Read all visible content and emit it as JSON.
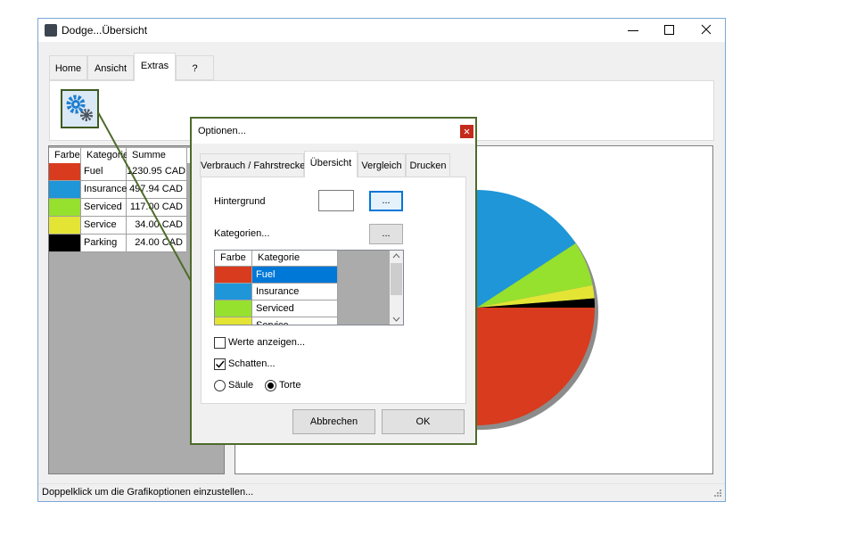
{
  "window": {
    "title": "Dodge...Übersicht",
    "tabs": [
      "Home",
      "Ansicht",
      "Extras",
      "?"
    ],
    "active_tab": 2,
    "status": "Doppelklick um die Grafikoptionen einzustellen..."
  },
  "summary_table": {
    "headers": [
      "Farbe",
      "Kategorie",
      "Summe"
    ],
    "rows": [
      {
        "category": "Fuel",
        "color": "#d83b1e",
        "sum": 1230.95,
        "sum_label": "1230.95 CAD"
      },
      {
        "category": "Insurance",
        "color": "#1e96d8",
        "sum": 497.94,
        "sum_label": "497.94 CAD"
      },
      {
        "category": "Serviced",
        "color": "#96e02e",
        "sum": 117.0,
        "sum_label": "117.00 CAD"
      },
      {
        "category": "Service",
        "color": "#e4e434",
        "sum": 34.0,
        "sum_label": "34.00 CAD"
      },
      {
        "category": "Parking",
        "color": "#000000",
        "sum": 24.0,
        "sum_label": "24.00 CAD"
      }
    ]
  },
  "dialog": {
    "title": "Optionen...",
    "tabs": [
      "Verbrauch / Fahrstrecke",
      "Übersicht",
      "Vergleich",
      "Drucken"
    ],
    "active_tab": 1,
    "background_label": "Hintergrund",
    "background_button": "...",
    "categories_label": "Kategorien...",
    "categories_button": "...",
    "list_headers": [
      "Farbe",
      "Kategorie"
    ],
    "selected_row": 0,
    "show_values": {
      "label": "Werte anzeigen...",
      "checked": false
    },
    "shadow": {
      "label": "Schatten...",
      "checked": true
    },
    "chart_type": {
      "options": [
        "Säule",
        "Torte"
      ],
      "selected": 1
    },
    "buttons": [
      "Abbrechen",
      "OK"
    ]
  }
}
